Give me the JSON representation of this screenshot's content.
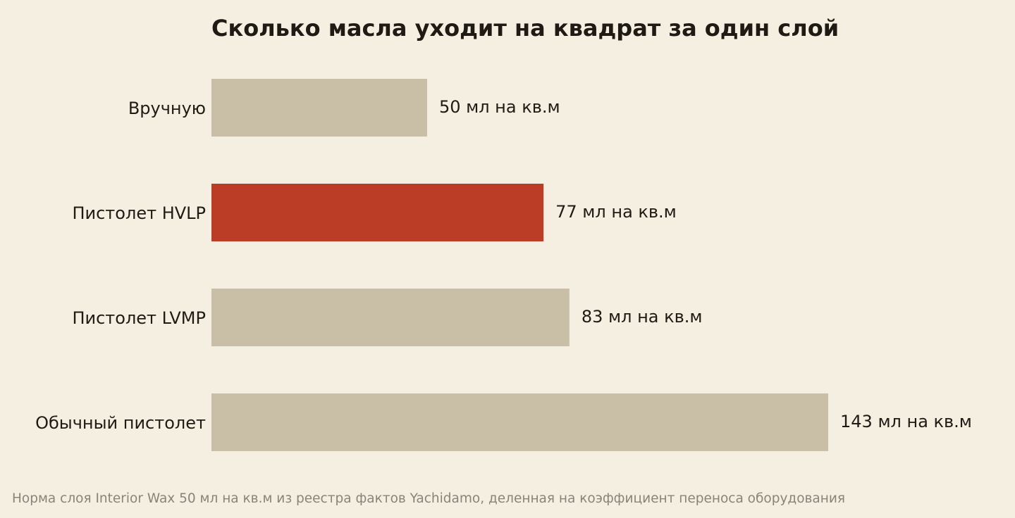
{
  "chart_data": {
    "type": "bar",
    "orientation": "horizontal",
    "title": "Сколько масла уходит на квадрат за один слой",
    "categories": [
      "Вручную",
      "Пистолет HVLP",
      "Пистолет LVMP",
      "Обычный пистолет"
    ],
    "values": [
      50,
      77,
      83,
      143
    ],
    "value_labels": [
      "50 мл на кв.м",
      "77 мл на кв.м",
      "83 мл на кв.м",
      "143 мл на кв.м"
    ],
    "highlight_index": 1,
    "xlim": [
      0,
      143
    ],
    "grid": false,
    "xlabel": "",
    "ylabel": "",
    "footnote": "Норма слоя Interior Wax 50 мл на кв.м из реестра фактов Yachidamo, деленная на коэффициент переноса оборудования"
  },
  "colors": {
    "background": "#f5efe2",
    "bar_default": "#c9bfa7",
    "bar_highlight": "#bb3d26",
    "text": "#1f1b14",
    "footnote": "#8a8478"
  }
}
